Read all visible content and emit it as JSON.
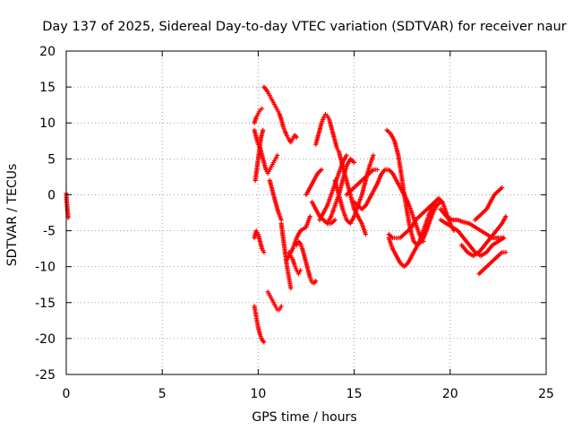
{
  "chart_data": {
    "type": "scatter",
    "title": "Day 137 of 2025, Sidereal Day-to-day VTEC variation (SDTVAR) for receiver naur",
    "xlabel": "GPS time / hours",
    "ylabel": "SDTVAR / TECUs",
    "xlim": [
      0,
      25
    ],
    "ylim": [
      -25,
      20
    ],
    "x_ticks": [
      "0",
      "5",
      "10",
      "15",
      "20",
      "25"
    ],
    "y_ticks": [
      "20",
      "15",
      "10",
      "5",
      "0",
      "-5",
      "-10",
      "-15",
      "-20",
      "-25"
    ],
    "grid": true,
    "marker": "plus",
    "color": "#ff0000",
    "series": [
      {
        "x": [
          0.0,
          0.02,
          0.04,
          0.06,
          0.08,
          0.1
        ],
        "y": [
          0.2,
          -0.8,
          -1.4,
          -2.0,
          -2.6,
          -3.2
        ]
      },
      {
        "x": [
          9.8,
          9.9,
          10.0,
          10.1,
          10.2,
          10.3
        ],
        "y": [
          -15.5,
          -17.0,
          -18.5,
          -19.5,
          -20.2,
          -20.5
        ]
      },
      {
        "x": [
          9.8,
          9.9,
          10.0,
          10.1,
          10.2,
          10.3
        ],
        "y": [
          -6.0,
          -5.0,
          -5.5,
          -6.5,
          -7.5,
          -8.0
        ]
      },
      {
        "x": [
          9.85,
          9.95,
          10.05,
          10.15,
          10.25
        ],
        "y": [
          2.0,
          4.0,
          6.0,
          8.0,
          9.0
        ]
      },
      {
        "x": [
          9.8,
          9.9,
          10.0,
          10.1,
          10.2
        ],
        "y": [
          10.0,
          10.8,
          11.3,
          11.8,
          12.0
        ]
      },
      {
        "x": [
          9.8,
          9.9,
          10.0,
          10.1,
          10.2,
          10.3,
          10.4,
          10.5,
          10.6,
          10.7,
          10.8,
          10.9,
          11.0
        ],
        "y": [
          9.0,
          8.0,
          7.0,
          6.5,
          5.5,
          4.5,
          3.5,
          3.0,
          3.5,
          4.0,
          4.5,
          5.0,
          5.5
        ]
      },
      {
        "x": [
          10.3,
          10.4,
          10.5,
          10.6,
          10.7,
          10.8,
          10.9,
          11.0,
          11.1,
          11.2,
          11.3,
          11.4,
          11.5,
          11.6,
          11.7,
          11.8,
          11.9,
          12.0
        ],
        "y": [
          15.0,
          14.7,
          14.3,
          13.8,
          13.3,
          12.8,
          12.3,
          11.8,
          11.3,
          10.5,
          9.5,
          8.8,
          8.2,
          7.7,
          7.3,
          7.8,
          8.3,
          8.0
        ]
      },
      {
        "x": [
          10.5,
          10.6,
          10.7,
          10.8,
          10.9,
          11.0,
          11.1,
          11.2
        ],
        "y": [
          -13.5,
          -14.0,
          -14.5,
          -15.0,
          -15.5,
          -16.0,
          -16.0,
          -15.5
        ]
      },
      {
        "x": [
          10.6,
          10.7,
          10.8,
          10.9,
          11.0,
          11.1,
          11.2
        ],
        "y": [
          2.0,
          1.0,
          0.0,
          -1.0,
          -2.0,
          -2.8,
          -3.5
        ]
      },
      {
        "x": [
          11.2,
          11.3,
          11.4,
          11.5,
          11.6,
          11.7
        ],
        "y": [
          -4.0,
          -6.0,
          -8.0,
          -10.0,
          -11.5,
          -13.0
        ]
      },
      {
        "x": [
          11.6,
          11.7,
          11.8,
          11.9,
          12.0,
          12.1,
          12.2
        ],
        "y": [
          -8.0,
          -8.5,
          -9.0,
          -9.8,
          -10.5,
          -11.0,
          -10.5
        ]
      },
      {
        "x": [
          12.0,
          12.1,
          12.2,
          12.3,
          12.4,
          12.5,
          12.6,
          12.7,
          12.8,
          12.9,
          13.0
        ],
        "y": [
          -7.0,
          -6.5,
          -6.8,
          -7.5,
          -8.5,
          -9.5,
          -10.5,
          -11.5,
          -12.2,
          -12.3,
          -12.0
        ]
      },
      {
        "x": [
          11.5,
          11.8,
          12.0,
          12.2,
          12.5,
          12.7
        ],
        "y": [
          -9.0,
          -7.5,
          -6.0,
          -5.0,
          -4.5,
          -3.0
        ]
      },
      {
        "x": [
          12.5,
          12.7,
          12.9,
          13.1,
          13.3
        ],
        "y": [
          0.0,
          1.0,
          2.0,
          3.0,
          3.5
        ]
      },
      {
        "x": [
          13.0,
          13.1,
          13.2,
          13.3,
          13.4,
          13.5,
          13.6,
          13.7,
          13.8,
          13.9,
          14.0,
          14.1,
          14.2
        ],
        "y": [
          7.0,
          8.0,
          9.0,
          10.0,
          10.7,
          11.2,
          11.0,
          10.5,
          9.5,
          8.5,
          7.5,
          6.5,
          6.0
        ]
      },
      {
        "x": [
          12.8,
          13.0,
          13.2,
          13.4,
          13.6,
          13.8,
          14.0
        ],
        "y": [
          -1.0,
          -2.0,
          -3.0,
          -3.5,
          -4.0,
          -4.0,
          -3.5
        ]
      },
      {
        "x": [
          13.2,
          13.4,
          13.6,
          13.8,
          14.0,
          14.2,
          14.4,
          14.6
        ],
        "y": [
          -3.5,
          -2.5,
          -1.5,
          0.0,
          1.5,
          3.0,
          4.5,
          5.5
        ]
      },
      {
        "x": [
          13.6,
          13.8,
          14.0,
          14.2,
          14.4,
          14.6,
          14.8,
          15.0
        ],
        "y": [
          -4.0,
          -3.0,
          -1.5,
          0.0,
          2.0,
          4.0,
          5.0,
          4.5
        ]
      },
      {
        "x": [
          14.0,
          14.2,
          14.4,
          14.6,
          14.8,
          15.0,
          15.2,
          15.4,
          15.6,
          15.8,
          16.0
        ],
        "y": [
          2.0,
          0.0,
          -2.0,
          -3.5,
          -4.0,
          -3.0,
          -1.5,
          0.0,
          2.0,
          4.0,
          5.5
        ]
      },
      {
        "x": [
          14.2,
          14.4,
          14.6,
          14.8,
          15.0,
          15.2,
          15.4,
          15.6
        ],
        "y": [
          6.0,
          4.0,
          2.0,
          0.0,
          -2.0,
          -3.0,
          -4.0,
          -5.5
        ]
      },
      {
        "x": [
          14.6,
          14.8,
          15.0,
          15.2,
          15.4,
          15.6,
          15.8,
          16.0,
          16.2
        ],
        "y": [
          0.0,
          0.5,
          1.0,
          1.5,
          2.0,
          2.5,
          3.0,
          3.5,
          3.5
        ]
      },
      {
        "x": [
          15.0,
          15.2,
          15.4,
          15.6,
          15.8,
          16.0,
          16.2,
          16.4,
          16.6,
          16.8,
          17.0,
          17.2,
          17.4,
          17.6,
          17.8,
          18.0,
          18.2,
          18.4,
          18.6
        ],
        "y": [
          -1.0,
          -1.5,
          -2.0,
          -1.5,
          -0.5,
          0.5,
          1.5,
          2.8,
          3.5,
          3.5,
          3.0,
          2.0,
          1.0,
          0.0,
          -1.0,
          -2.5,
          -4.0,
          -5.5,
          -6.5
        ]
      },
      {
        "x": [
          16.7,
          16.9,
          17.1,
          17.3,
          17.5,
          17.7,
          17.9,
          18.1,
          18.3,
          18.5,
          18.7,
          18.9,
          19.1,
          19.3,
          19.5
        ],
        "y": [
          9.0,
          8.5,
          7.5,
          5.5,
          2.0,
          -1.5,
          -4.5,
          -6.5,
          -7.0,
          -6.5,
          -5.5,
          -4.0,
          -2.5,
          -1.5,
          -1.0
        ]
      },
      {
        "x": [
          16.8,
          17.0,
          17.2,
          17.4,
          17.6,
          17.8,
          18.0,
          18.2,
          18.4,
          18.6,
          18.8,
          19.0,
          19.2,
          19.4,
          19.6,
          19.8,
          20.0,
          20.2
        ],
        "y": [
          -6.0,
          -7.5,
          -8.5,
          -9.5,
          -10.0,
          -9.5,
          -8.5,
          -7.5,
          -6.5,
          -5.0,
          -3.5,
          -2.0,
          -1.0,
          -0.5,
          -1.0,
          -2.5,
          -4.0,
          -5.0
        ]
      },
      {
        "x": [
          16.8,
          17.0,
          17.2,
          17.4,
          17.6,
          17.8,
          18.0,
          18.2,
          18.4,
          18.6,
          18.8,
          19.0,
          19.2,
          19.4
        ],
        "y": [
          -5.5,
          -6.0,
          -6.0,
          -6.0,
          -5.5,
          -5.0,
          -4.5,
          -3.5,
          -3.0,
          -2.5,
          -2.0,
          -1.5,
          -1.0,
          -0.5
        ]
      },
      {
        "x": [
          19.5,
          19.8,
          20.1,
          20.4,
          20.7,
          21.0,
          21.3,
          21.6,
          21.9,
          22.2,
          22.5,
          22.8
        ],
        "y": [
          -2.0,
          -3.0,
          -3.5,
          -3.5,
          -3.8,
          -4.0,
          -4.5,
          -5.0,
          -5.5,
          -6.0,
          -6.0,
          -6.0
        ]
      },
      {
        "x": [
          19.5,
          19.8,
          20.1,
          20.4,
          20.7,
          21.0,
          21.3,
          21.6,
          21.9,
          22.2,
          22.5,
          22.8
        ],
        "y": [
          -3.5,
          -4.0,
          -4.5,
          -5.0,
          -6.0,
          -7.0,
          -8.0,
          -8.5,
          -8.0,
          -7.0,
          -6.5,
          -6.0
        ]
      },
      {
        "x": [
          21.5,
          21.7,
          21.9,
          22.1,
          22.3,
          22.5,
          22.7,
          22.9
        ],
        "y": [
          -11.0,
          -10.5,
          -10.0,
          -9.5,
          -9.0,
          -8.5,
          -8.0,
          -8.0
        ]
      },
      {
        "x": [
          20.6,
          20.9,
          21.2,
          21.5,
          21.8,
          22.1,
          22.4,
          22.7,
          22.9
        ],
        "y": [
          -7.0,
          -8.0,
          -8.5,
          -8.0,
          -7.0,
          -6.0,
          -5.0,
          -4.0,
          -3.0
        ]
      },
      {
        "x": [
          21.3,
          21.5,
          21.7,
          21.9,
          22.1,
          22.3,
          22.5,
          22.7
        ],
        "y": [
          -3.5,
          -3.0,
          -2.5,
          -2.0,
          -1.0,
          0.0,
          0.5,
          1.0
        ]
      }
    ]
  }
}
